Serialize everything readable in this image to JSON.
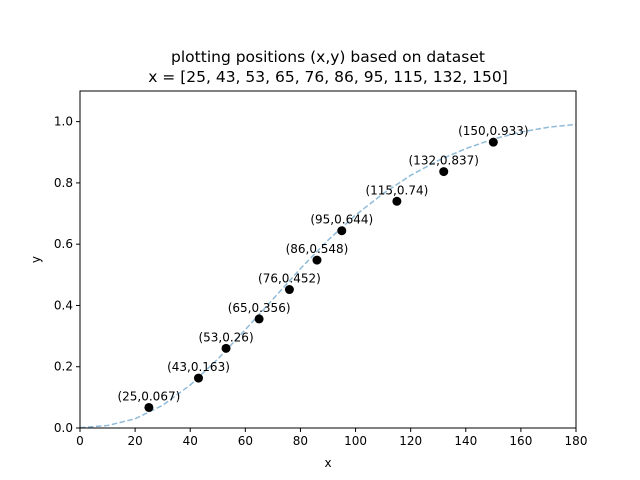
{
  "chart_data": {
    "type": "scatter",
    "title": [
      "plotting positions (x,y) based on dataset",
      "x = [25, 43, 53, 65, 76, 86, 95, 115, 132, 150]"
    ],
    "xlabel": "x",
    "ylabel": "y",
    "xlim": [
      0,
      180
    ],
    "ylim": [
      0,
      1.1
    ],
    "xticks": [
      0,
      20,
      40,
      60,
      80,
      100,
      120,
      140,
      160,
      180
    ],
    "yticks": [
      0.0,
      0.2,
      0.4,
      0.6,
      0.8,
      1.0
    ],
    "ytick_labels": [
      "0.0",
      "0.2",
      "0.4",
      "0.6",
      "0.8",
      "1.0"
    ],
    "grid": false,
    "points": [
      {
        "x": 25,
        "y": 0.067,
        "label": "(25,0.067)"
      },
      {
        "x": 43,
        "y": 0.163,
        "label": "(43,0.163)"
      },
      {
        "x": 53,
        "y": 0.26,
        "label": "(53,0.26)"
      },
      {
        "x": 65,
        "y": 0.356,
        "label": "(65,0.356)"
      },
      {
        "x": 76,
        "y": 0.452,
        "label": "(76,0.452)"
      },
      {
        "x": 86,
        "y": 0.548,
        "label": "(86,0.548)"
      },
      {
        "x": 95,
        "y": 0.644,
        "label": "(95,0.644)"
      },
      {
        "x": 115,
        "y": 0.74,
        "label": "(115,0.74)"
      },
      {
        "x": 132,
        "y": 0.837,
        "label": "(132,0.837)"
      },
      {
        "x": 150,
        "y": 0.933,
        "label": "(150,0.933)"
      }
    ],
    "fitted_curve": {
      "style": "dashed",
      "x": [
        0,
        10,
        20,
        30,
        40,
        50,
        60,
        70,
        80,
        90,
        100,
        110,
        120,
        130,
        140,
        150,
        160,
        170,
        180
      ],
      "y": [
        0.001,
        0.008,
        0.03,
        0.074,
        0.14,
        0.225,
        0.321,
        0.42,
        0.52,
        0.613,
        0.695,
        0.765,
        0.825,
        0.873,
        0.912,
        0.943,
        0.966,
        0.982,
        0.991
      ]
    },
    "colors": {
      "points": "#000000",
      "curve": "#1f77b4"
    }
  }
}
